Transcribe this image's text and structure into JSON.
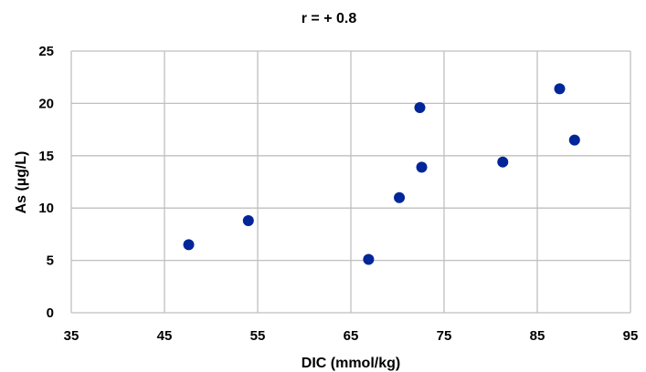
{
  "chart_data": {
    "type": "scatter",
    "title": "r = + 0.8",
    "xlabel": "DIC (mmol/kg)",
    "ylabel": "As (µg/L)",
    "xlim": [
      35,
      95
    ],
    "ylim": [
      0,
      25
    ],
    "xticks": [
      35,
      45,
      55,
      65,
      75,
      85,
      95
    ],
    "yticks": [
      0,
      5,
      10,
      15,
      20,
      25
    ],
    "grid": true,
    "legend": "none",
    "marker_color": "#002699",
    "grid_color": "#bfbfbf",
    "points": [
      {
        "x": 47.6,
        "y": 6.5
      },
      {
        "x": 54.0,
        "y": 8.8
      },
      {
        "x": 66.9,
        "y": 5.1
      },
      {
        "x": 70.2,
        "y": 11.0
      },
      {
        "x": 72.4,
        "y": 19.6
      },
      {
        "x": 72.6,
        "y": 13.9
      },
      {
        "x": 81.3,
        "y": 14.4
      },
      {
        "x": 87.4,
        "y": 21.4
      },
      {
        "x": 89.0,
        "y": 16.5
      }
    ]
  }
}
